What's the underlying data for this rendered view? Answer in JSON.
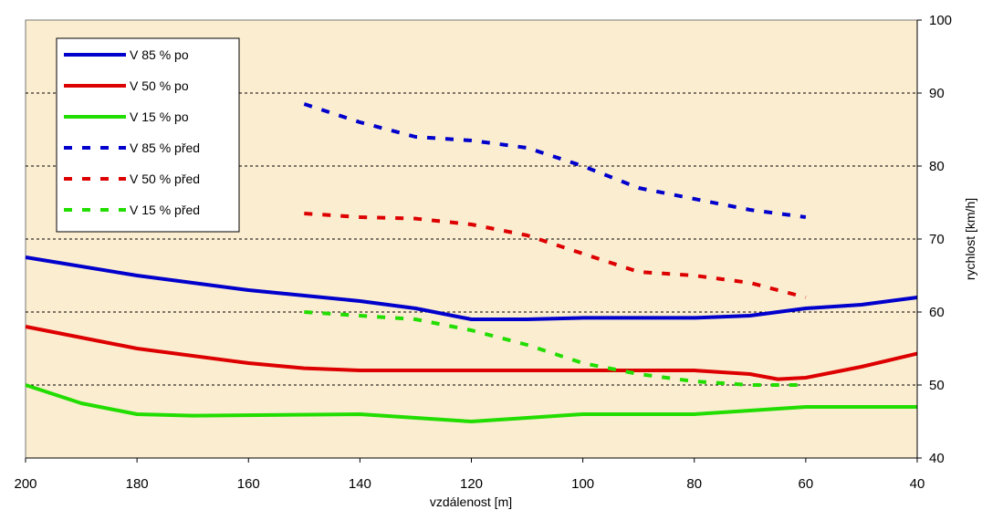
{
  "chart_data": {
    "type": "line",
    "xlabel": "vzdálenost [m]",
    "ylabel": "rychlost [km/h]",
    "xlim": [
      200,
      40
    ],
    "ylim": [
      40,
      100
    ],
    "x_reversed": true,
    "y_axis_side": "right",
    "x_ticks": [
      200,
      180,
      160,
      140,
      120,
      100,
      80,
      60,
      40
    ],
    "y_ticks": [
      40,
      50,
      60,
      70,
      80,
      90,
      100
    ],
    "grid": "horizontal dashed at 50, 60, 70, 80, 90",
    "legend_position": "top-left",
    "plot_background": "#fbedd0",
    "series": [
      {
        "name": "V 85 % po",
        "color": "#0000cc",
        "style": "solid",
        "x": [
          200,
          180,
          160,
          140,
          130,
          120,
          110,
          100,
          80,
          70,
          60,
          50,
          40
        ],
        "y": [
          67.5,
          65,
          63,
          61.5,
          60.5,
          59,
          59,
          59.2,
          59.2,
          59.5,
          60.5,
          61,
          62
        ]
      },
      {
        "name": "V 50 % po",
        "color": "#dd0000",
        "style": "solid",
        "x": [
          200,
          180,
          160,
          150,
          140,
          120,
          100,
          80,
          70,
          65,
          60,
          50,
          40
        ],
        "y": [
          58,
          55,
          53,
          52.3,
          52,
          52,
          52,
          52,
          51.5,
          50.8,
          51,
          52.5,
          54.3
        ]
      },
      {
        "name": "V 15 % po",
        "color": "#22dd00",
        "style": "solid",
        "x": [
          200,
          190,
          180,
          170,
          140,
          130,
          120,
          110,
          100,
          80,
          70,
          60,
          50,
          40
        ],
        "y": [
          50,
          47.5,
          46,
          45.8,
          46,
          45.5,
          45,
          45.5,
          46,
          46,
          46.5,
          47,
          47,
          47
        ]
      },
      {
        "name": "V 85 % před",
        "color": "#0000cc",
        "style": "dashed",
        "x": [
          150,
          140,
          130,
          120,
          110,
          100,
          90,
          80,
          70,
          60
        ],
        "y": [
          88.5,
          86,
          84,
          83.5,
          82.5,
          80,
          77,
          75.5,
          74,
          73
        ]
      },
      {
        "name": "V 50 % před",
        "color": "#dd0000",
        "style": "dashed",
        "x": [
          150,
          140,
          130,
          120,
          110,
          100,
          90,
          80,
          70,
          60
        ],
        "y": [
          73.5,
          73,
          72.8,
          72,
          70.5,
          68,
          65.5,
          65,
          64,
          62
        ]
      },
      {
        "name": "V 15 % před",
        "color": "#22dd00",
        "style": "dashed",
        "x": [
          150,
          140,
          130,
          120,
          110,
          100,
          90,
          80,
          70,
          60
        ],
        "y": [
          60,
          59.5,
          59,
          57.5,
          55.5,
          53,
          51.5,
          50.5,
          50,
          50
        ]
      }
    ]
  }
}
